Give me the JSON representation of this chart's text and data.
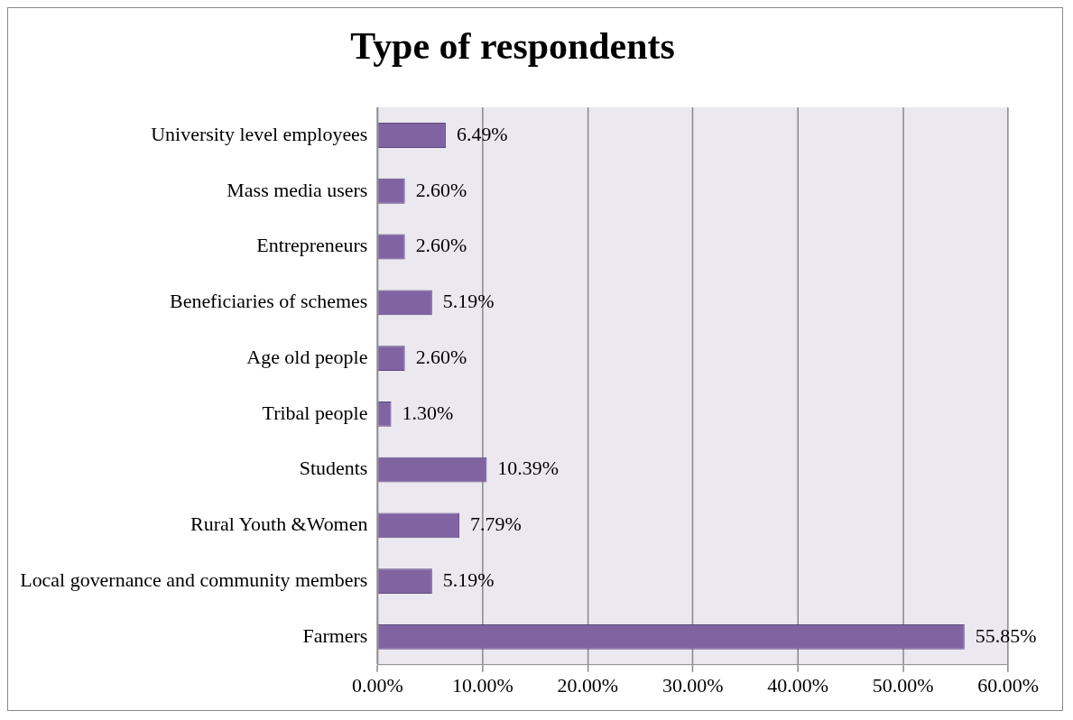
{
  "chart_data": {
    "type": "bar",
    "orientation": "horizontal",
    "title": "Type of respondents",
    "categories": [
      "University level employees",
      "Mass media users",
      "Entrepreneurs",
      "Beneficiaries of schemes",
      "Age old people",
      "Tribal people",
      "Students",
      "Rural Youth &Women",
      "Local governance and community members",
      "Farmers"
    ],
    "values": [
      6.49,
      2.6,
      2.6,
      5.19,
      2.6,
      1.3,
      10.39,
      7.79,
      5.19,
      55.85
    ],
    "value_labels": [
      "6.49%",
      "2.60%",
      "2.60%",
      "5.19%",
      "2.60%",
      "1.30%",
      "10.39%",
      "7.79%",
      "5.19%",
      "55.85%"
    ],
    "color": "#8064a2",
    "xlim": [
      0,
      60
    ],
    "xticks": [
      {
        "value": 0,
        "label": "0.00%"
      },
      {
        "value": 10,
        "label": "10.00%"
      },
      {
        "value": 20,
        "label": "20.00%"
      },
      {
        "value": 30,
        "label": "30.00%"
      },
      {
        "value": 40,
        "label": "40.00%"
      },
      {
        "value": 50,
        "label": "50.00%"
      },
      {
        "value": 60,
        "label": "60.00%"
      }
    ],
    "grid": "x",
    "legend": false
  }
}
